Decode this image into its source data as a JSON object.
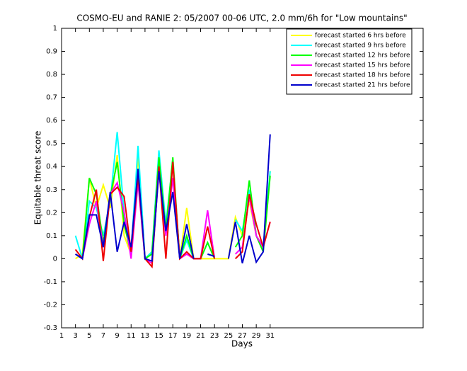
{
  "chart_data": {
    "type": "line",
    "title": "COSMO-EU and RANIE 2: 05/2007 00-06 UTC, 2.0 mm/6h for \"Low mountains\"",
    "xlabel": "Days",
    "ylabel": "Equitable threat score",
    "x": [
      3,
      4,
      5,
      6,
      7,
      8,
      9,
      10,
      11,
      12,
      13,
      14,
      15,
      16,
      17,
      18,
      19,
      20,
      21,
      22,
      23,
      24,
      25,
      26,
      27,
      28,
      29,
      30,
      31
    ],
    "xlim": [
      1,
      53
    ],
    "xticks": [
      1,
      3,
      5,
      7,
      9,
      11,
      13,
      15,
      17,
      19,
      21,
      23,
      25,
      27,
      29,
      31
    ],
    "ylim": [
      -0.3,
      1
    ],
    "yticks": [
      -0.3,
      -0.2,
      -0.1,
      0,
      0.1,
      0.2,
      0.3,
      0.4,
      0.5,
      0.6,
      0.7,
      0.8,
      0.9,
      1
    ],
    "legend": "upper right",
    "series": [
      {
        "name": "forecast started 6 hrs before",
        "color": "#ffff00",
        "values": [
          0.0,
          0.02,
          0.35,
          0.22,
          0.32,
          0.22,
          0.45,
          0.1,
          0.02,
          0.45,
          0.0,
          0.03,
          0.45,
          0.12,
          0.42,
          0.0,
          0.22,
          0.0,
          0.0,
          0.0,
          0.0,
          0.0,
          0.0,
          0.18,
          0.1,
          0.25,
          0.1,
          0.05,
          0.38
        ]
      },
      {
        "name": "forecast started 9 hrs before",
        "color": "#00ffff",
        "values": [
          0.1,
          0.0,
          0.25,
          0.22,
          0.1,
          0.25,
          0.55,
          0.2,
          0.03,
          0.49,
          0.0,
          0.03,
          0.47,
          0.15,
          0.42,
          0.0,
          0.08,
          0.0,
          0.0,
          0.07,
          0.0,
          null,
          null,
          0.17,
          0.12,
          0.3,
          0.1,
          0.05,
          0.38
        ]
      },
      {
        "name": "forecast started 12 hrs before",
        "color": "#00ff00",
        "values": [
          0.02,
          0.0,
          0.35,
          0.28,
          0.07,
          0.27,
          0.42,
          0.15,
          0.02,
          0.38,
          0.0,
          0.02,
          0.44,
          0.12,
          0.44,
          0.0,
          0.1,
          0.0,
          0.0,
          0.07,
          0.0,
          null,
          null,
          0.05,
          0.1,
          0.34,
          0.1,
          0.03,
          0.36
        ]
      },
      {
        "name": "forecast started 15 hrs before",
        "color": "#ff00ff",
        "values": [
          0.02,
          0.0,
          0.15,
          0.25,
          0.05,
          0.28,
          0.33,
          0.2,
          0.0,
          0.33,
          0.0,
          -0.02,
          0.38,
          0.1,
          0.35,
          0.0,
          0.02,
          0.0,
          0.0,
          0.21,
          0.0,
          null,
          null,
          0.02,
          0.05,
          0.27,
          0.1,
          0.05,
          0.16
        ]
      },
      {
        "name": "forecast started 18 hrs before",
        "color": "#ee0000",
        "values": [
          0.04,
          0.0,
          0.18,
          0.3,
          -0.01,
          0.28,
          0.31,
          0.27,
          0.03,
          0.36,
          0.0,
          -0.035,
          0.4,
          0.0,
          0.42,
          0.0,
          0.03,
          0.0,
          0.0,
          0.14,
          0.0,
          null,
          null,
          0.0,
          0.03,
          0.28,
          0.15,
          0.05,
          0.16
        ]
      },
      {
        "name": "forecast started 21 hrs before",
        "color": "#0000cc",
        "values": [
          0.02,
          0.0,
          0.19,
          0.19,
          0.05,
          0.29,
          0.03,
          0.16,
          0.05,
          0.39,
          0.0,
          -0.01,
          0.38,
          0.12,
          0.29,
          0.0,
          0.15,
          0.0,
          null,
          0.02,
          0.01,
          null,
          0.0,
          0.16,
          -0.02,
          0.1,
          -0.015,
          0.03,
          0.54
        ]
      }
    ]
  }
}
